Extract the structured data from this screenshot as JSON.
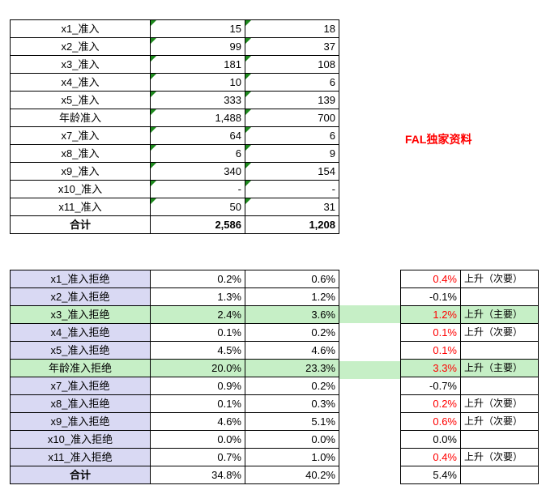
{
  "watermark": "FAL独家资料",
  "admission_table": {
    "rows": [
      {
        "label": "x1_准入",
        "a": "15",
        "b": "18"
      },
      {
        "label": "x2_准入",
        "a": "99",
        "b": "37"
      },
      {
        "label": "x3_准入",
        "a": "181",
        "b": "108"
      },
      {
        "label": "x4_准入",
        "a": "10",
        "b": "6"
      },
      {
        "label": "x5_准入",
        "a": "333",
        "b": "139"
      },
      {
        "label": "年龄准入",
        "a": "1,488",
        "b": "700"
      },
      {
        "label": "x7_准入",
        "a": "64",
        "b": "6"
      },
      {
        "label": "x8_准入",
        "a": "6",
        "b": "9"
      },
      {
        "label": "x9_准入",
        "a": "340",
        "b": "154"
      },
      {
        "label": "x10_准入",
        "a": "-",
        "b": "-"
      },
      {
        "label": "x11_准入",
        "a": "50",
        "b": "31"
      }
    ],
    "total": {
      "label": "合计",
      "a": "2,586",
      "b": "1,208"
    }
  },
  "rejection_table": {
    "rows": [
      {
        "label": "x1_准入拒绝",
        "a": "0.2%",
        "b": "0.6%"
      },
      {
        "label": "x2_准入拒绝",
        "a": "1.3%",
        "b": "1.2%"
      },
      {
        "label": "x3_准入拒绝",
        "a": "2.4%",
        "b": "3.6%"
      },
      {
        "label": "x4_准入拒绝",
        "a": "0.1%",
        "b": "0.2%"
      },
      {
        "label": "x5_准入拒绝",
        "a": "4.5%",
        "b": "4.6%"
      },
      {
        "label": "年龄准入拒绝",
        "a": "20.0%",
        "b": "23.3%"
      },
      {
        "label": "x7_准入拒绝",
        "a": "0.9%",
        "b": "0.2%"
      },
      {
        "label": "x8_准入拒绝",
        "a": "0.1%",
        "b": "0.3%"
      },
      {
        "label": "x9_准入拒绝",
        "a": "4.6%",
        "b": "5.1%"
      },
      {
        "label": "x10_准入拒绝",
        "a": "0.0%",
        "b": "0.0%"
      },
      {
        "label": "x11_准入拒绝",
        "a": "0.7%",
        "b": "1.0%"
      }
    ],
    "total": {
      "label": "合计",
      "a": "34.8%",
      "b": "40.2%"
    }
  },
  "change_table": {
    "rows": [
      {
        "diff": "0.4%",
        "note": "上升（次要）"
      },
      {
        "diff": "-0.1%",
        "note": ""
      },
      {
        "diff": "1.2%",
        "note": "上升（主要）"
      },
      {
        "diff": "0.1%",
        "note": "上升（次要）"
      },
      {
        "diff": "0.1%",
        "note": ""
      },
      {
        "diff": "3.3%",
        "note": "上升（主要）"
      },
      {
        "diff": "-0.7%",
        "note": ""
      },
      {
        "diff": "0.2%",
        "note": "上升（次要）"
      },
      {
        "diff": "0.6%",
        "note": "上升（次要）"
      },
      {
        "diff": "0.0%",
        "note": ""
      },
      {
        "diff": "0.4%",
        "note": "上升（次要）"
      }
    ],
    "total": {
      "diff": "5.4%",
      "note": ""
    }
  },
  "colors": {
    "positive": "#ff0000",
    "highlight": "#c6efc6",
    "label_bg": "#d9d9f3",
    "flag": "#1e8a1e"
  }
}
